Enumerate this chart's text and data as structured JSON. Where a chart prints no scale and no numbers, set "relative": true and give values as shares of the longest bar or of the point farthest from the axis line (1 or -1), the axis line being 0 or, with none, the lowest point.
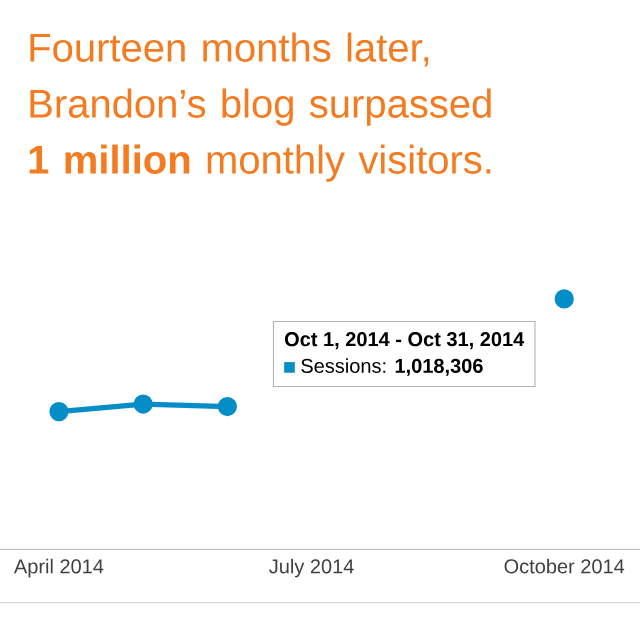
{
  "chart_data": {
    "type": "line",
    "title": "Fourteen months later, Brandon’s blog surpassed **1 million** monthly visitors.",
    "relative": true,
    "marker": "circle",
    "categories": [
      "April 2014",
      null,
      null,
      "July 2014",
      null,
      null,
      "October 2014"
    ],
    "series": [
      {
        "color": "#058dc7",
        "values": [
          0.55,
          0.58,
          0.57,
          null,
          null,
          null,
          1
        ]
      }
    ],
    "annotations": [
      "Oct 1, 2014 - Oct 31, 2014",
      "Sessions: **1,018,306**"
    ]
  }
}
